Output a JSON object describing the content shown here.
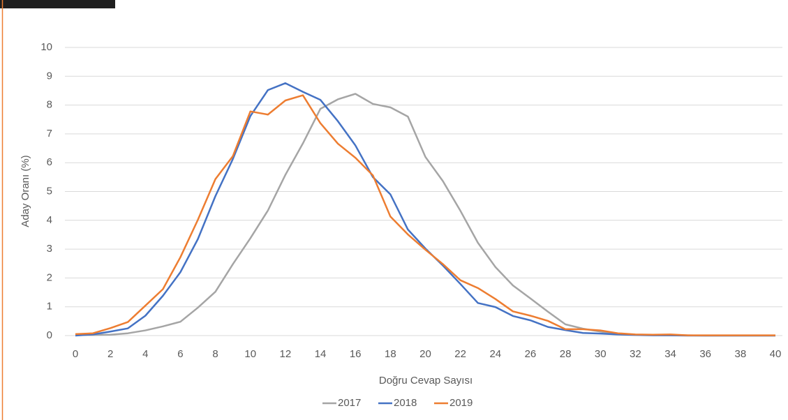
{
  "chart_data": {
    "type": "line",
    "x": [
      0,
      1,
      2,
      3,
      4,
      5,
      6,
      7,
      8,
      9,
      10,
      11,
      12,
      13,
      14,
      15,
      16,
      17,
      18,
      19,
      20,
      21,
      22,
      23,
      24,
      25,
      26,
      27,
      28,
      29,
      30,
      31,
      32,
      33,
      34,
      35,
      36,
      37,
      38,
      39,
      40
    ],
    "series": [
      {
        "name": "2017",
        "color": "#a5a5a5",
        "values": [
          0.02,
          0.02,
          0.03,
          0.08,
          0.18,
          0.32,
          0.48,
          0.97,
          1.52,
          2.48,
          3.38,
          4.34,
          5.58,
          6.67,
          7.87,
          8.2,
          8.39,
          8.04,
          7.92,
          7.6,
          6.2,
          5.36,
          4.33,
          3.22,
          2.38,
          1.74,
          1.29,
          0.83,
          0.39,
          0.24,
          0.14,
          0.05,
          0.03,
          0.02,
          0.01,
          0.01,
          0,
          0,
          0,
          0,
          0
        ]
      },
      {
        "name": "2018",
        "color": "#4472c4",
        "values": [
          0,
          0.04,
          0.14,
          0.25,
          0.69,
          1.38,
          2.2,
          3.35,
          4.84,
          6.13,
          7.62,
          8.52,
          8.76,
          8.46,
          8.18,
          7.44,
          6.6,
          5.5,
          4.9,
          3.68,
          3.02,
          2.43,
          1.79,
          1.13,
          0.99,
          0.68,
          0.53,
          0.3,
          0.19,
          0.09,
          0.07,
          0.04,
          0.02,
          0.01,
          0.01,
          0,
          0,
          0,
          0,
          0,
          0
        ]
      },
      {
        "name": "2019",
        "color": "#ed7d31",
        "values": [
          0.05,
          0.08,
          0.26,
          0.47,
          1.04,
          1.61,
          2.72,
          4.02,
          5.43,
          6.23,
          7.78,
          7.67,
          8.16,
          8.34,
          7.37,
          6.66,
          6.17,
          5.56,
          4.13,
          3.51,
          2.98,
          2.48,
          1.92,
          1.65,
          1.27,
          0.84,
          0.69,
          0.51,
          0.22,
          0.22,
          0.18,
          0.08,
          0.04,
          0.03,
          0.04,
          0.01,
          0.01,
          0.01,
          0.01,
          0.01,
          0.01
        ]
      }
    ],
    "x_label": "Doğru Cevap Sayısı",
    "y_label": "Aday Oranı (%)",
    "xlim": [
      0,
      40
    ],
    "xticks": [
      0,
      2,
      4,
      6,
      8,
      10,
      12,
      14,
      16,
      18,
      20,
      22,
      24,
      26,
      28,
      30,
      32,
      34,
      36,
      38,
      40
    ],
    "ylim": [
      0,
      10
    ],
    "yticks": [
      0,
      1,
      2,
      3,
      4,
      5,
      6,
      7,
      8,
      9,
      10
    ],
    "grid": true,
    "legend": "bottom"
  }
}
